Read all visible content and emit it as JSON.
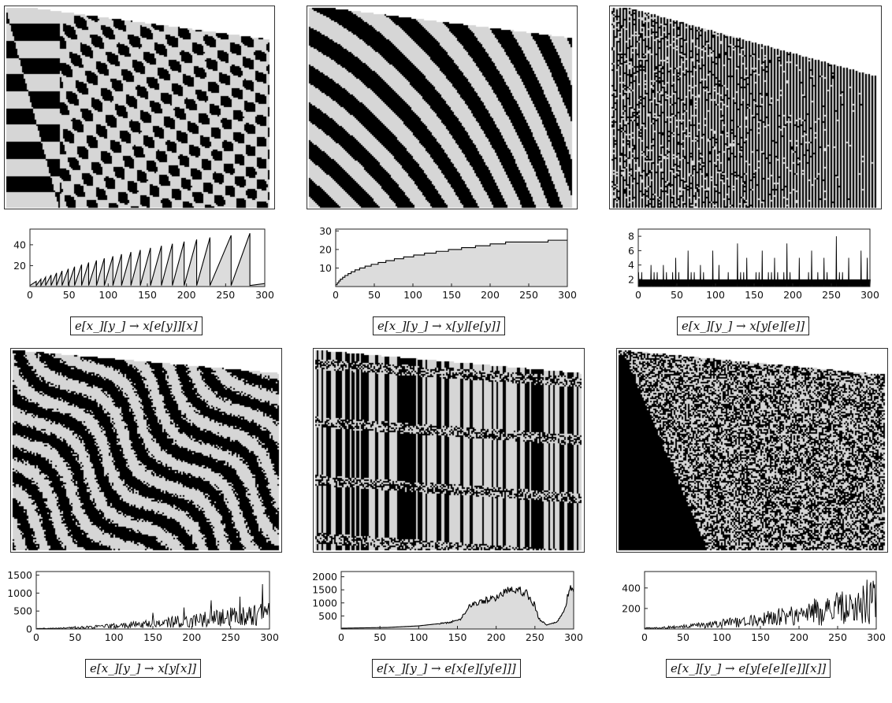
{
  "chart_data": [
    {
      "type": "area",
      "rule": "e[x_][y_] → x[e[y]][x]",
      "xlim": [
        0,
        300
      ],
      "ylim": [
        0,
        55
      ],
      "x_ticks": [
        0,
        50,
        100,
        150,
        200,
        250,
        300
      ],
      "y_ticks": [
        20,
        40
      ],
      "style": "sawtooth",
      "peaks": [
        [
          8,
          5
        ],
        [
          14,
          7
        ],
        [
          20,
          9
        ],
        [
          27,
          11
        ],
        [
          34,
          13
        ],
        [
          41,
          15
        ],
        [
          49,
          17
        ],
        [
          57,
          19
        ],
        [
          66,
          21
        ],
        [
          75,
          23
        ],
        [
          85,
          25
        ],
        [
          95,
          27
        ],
        [
          106,
          29
        ],
        [
          117,
          31
        ],
        [
          129,
          33
        ],
        [
          141,
          35
        ],
        [
          154,
          37
        ],
        [
          168,
          39
        ],
        [
          182,
          41
        ],
        [
          197,
          43
        ],
        [
          213,
          45
        ],
        [
          230,
          47
        ],
        [
          257,
          49
        ],
        [
          281,
          51
        ]
      ],
      "grid": false
    },
    {
      "type": "area",
      "rule": "e[x_][y_] → x[y][e[y]]",
      "xlim": [
        0,
        300
      ],
      "ylim": [
        0,
        31
      ],
      "x_ticks": [
        0,
        50,
        100,
        150,
        200,
        250,
        300
      ],
      "y_ticks": [
        10,
        20,
        30
      ],
      "style": "staircase",
      "steps": [
        [
          0,
          1
        ],
        [
          2,
          2
        ],
        [
          4,
          3
        ],
        [
          6,
          4
        ],
        [
          9,
          5
        ],
        [
          12,
          6
        ],
        [
          16,
          7
        ],
        [
          20,
          8
        ],
        [
          25,
          9
        ],
        [
          31,
          10
        ],
        [
          38,
          11
        ],
        [
          46,
          12
        ],
        [
          55,
          13
        ],
        [
          65,
          14
        ],
        [
          76,
          15
        ],
        [
          88,
          16
        ],
        [
          101,
          17
        ],
        [
          115,
          18
        ],
        [
          130,
          19
        ],
        [
          146,
          20
        ],
        [
          163,
          21
        ],
        [
          181,
          22
        ],
        [
          200,
          23
        ],
        [
          220,
          24
        ],
        [
          275,
          25
        ],
        [
          300,
          25
        ]
      ],
      "grid": false
    },
    {
      "type": "line",
      "rule": "e[x_][y_] → x[y[e][e]]",
      "xlim": [
        0,
        300
      ],
      "ylim": [
        1,
        9
      ],
      "x_ticks": [
        0,
        50,
        100,
        150,
        200,
        250,
        300
      ],
      "y_ticks": [
        2,
        4,
        6,
        8
      ],
      "style": "spiky-band",
      "baseline": 1,
      "band_top": 2,
      "spikes": [
        [
          16,
          4
        ],
        [
          32,
          4
        ],
        [
          48,
          5
        ],
        [
          64,
          6
        ],
        [
          80,
          4
        ],
        [
          96,
          6
        ],
        [
          104,
          4
        ],
        [
          128,
          7
        ],
        [
          140,
          5
        ],
        [
          160,
          6
        ],
        [
          176,
          5
        ],
        [
          192,
          7
        ],
        [
          208,
          5
        ],
        [
          224,
          6
        ],
        [
          240,
          5
        ],
        [
          256,
          8
        ],
        [
          272,
          5
        ],
        [
          288,
          6
        ],
        [
          296,
          5
        ]
      ],
      "grid": false
    },
    {
      "type": "line",
      "rule": "e[x_][y_] → x[y[x]]",
      "xlim": [
        0,
        300
      ],
      "ylim": [
        0,
        1600
      ],
      "x_ticks": [
        0,
        50,
        100,
        150,
        200,
        250,
        300
      ],
      "y_ticks": [
        0,
        500,
        1000,
        1500
      ],
      "style": "noisy-growth",
      "envelope_start": 20,
      "envelope_end": 800,
      "peaks": [
        [
          150,
          450
        ],
        [
          190,
          600
        ],
        [
          225,
          800
        ],
        [
          262,
          900
        ],
        [
          291,
          1250
        ]
      ],
      "grid": false
    },
    {
      "type": "area",
      "rule": "e[x_][y_] → e[x[e][y[e]]]",
      "xlim": [
        0,
        300
      ],
      "ylim": [
        0,
        2200
      ],
      "x_ticks": [
        0,
        50,
        100,
        150,
        200,
        250,
        300
      ],
      "y_ticks": [
        500,
        1000,
        1500,
        2000
      ],
      "style": "plateau",
      "profile": [
        [
          0,
          30
        ],
        [
          60,
          60
        ],
        [
          100,
          120
        ],
        [
          140,
          250
        ],
        [
          155,
          400
        ],
        [
          165,
          900
        ],
        [
          180,
          1050
        ],
        [
          200,
          1200
        ],
        [
          210,
          1400
        ],
        [
          220,
          1600
        ],
        [
          230,
          1500
        ],
        [
          240,
          1350
        ],
        [
          250,
          900
        ],
        [
          255,
          400
        ],
        [
          265,
          150
        ],
        [
          280,
          300
        ],
        [
          290,
          900
        ],
        [
          295,
          1700
        ],
        [
          300,
          1500
        ]
      ],
      "grid": false
    },
    {
      "type": "line",
      "rule": "e[x_][y_] → e[y[e[e][e]][x]]",
      "xlim": [
        0,
        300
      ],
      "ylim": [
        0,
        560
      ],
      "x_ticks": [
        0,
        50,
        100,
        150,
        200,
        250,
        300
      ],
      "y_ticks": [
        200,
        400
      ],
      "style": "noisy-growth",
      "envelope_start": 15,
      "envelope_end": 480,
      "peaks": [
        [
          288,
          480
        ],
        [
          296,
          470
        ]
      ],
      "grid": false
    }
  ]
}
